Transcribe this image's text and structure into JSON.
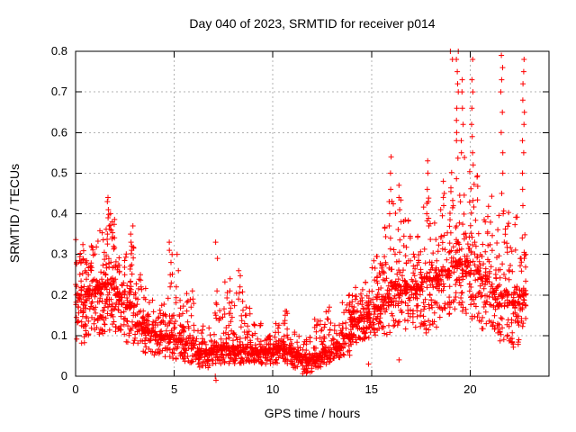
{
  "chart_data": {
    "type": "scatter",
    "title": "Day 040 of 2023, SRMTID for receiver p014",
    "xlabel": "GPS time / hours",
    "ylabel": "SRMTID / TECUs",
    "xlim": [
      0,
      24
    ],
    "ylim": [
      0,
      0.8
    ],
    "xticks": {
      "values": [
        0,
        5,
        10,
        15,
        20
      ],
      "labels": [
        "0",
        "5",
        "10",
        "15",
        "20"
      ]
    },
    "yticks": {
      "values": [
        0,
        0.1,
        0.2,
        0.3,
        0.4,
        0.5,
        0.6,
        0.7,
        0.8
      ],
      "labels": [
        "0",
        "0.1",
        "0.2",
        "0.3",
        "0.4",
        "0.5",
        "0.6",
        "0.7",
        "0.8"
      ]
    },
    "grid": {
      "show": true,
      "color": "#b3b3b3",
      "style": "dotted"
    },
    "legend": "none",
    "border_color": "#000000",
    "background": "#ffffff",
    "marker": {
      "shape": "plus",
      "size": 7,
      "color": "#ff0000"
    },
    "seed": 20230040,
    "bands_note": "dense scatter envelope per time bin: [t0_hours, t1_hours, n_points, y_min, y_mode, y_max] in TECUs",
    "bands": [
      [
        0,
        0.5,
        70,
        0.08,
        0.2,
        0.34
      ],
      [
        0.5,
        1,
        72,
        0.1,
        0.21,
        0.33
      ],
      [
        1,
        1.5,
        75,
        0.1,
        0.22,
        0.37
      ],
      [
        1.5,
        2,
        75,
        0.11,
        0.23,
        0.4
      ],
      [
        2,
        2.5,
        70,
        0.1,
        0.2,
        0.31
      ],
      [
        2.5,
        3,
        65,
        0.08,
        0.17,
        0.34
      ],
      [
        3,
        3.5,
        60,
        0.06,
        0.13,
        0.24
      ],
      [
        3.5,
        4,
        58,
        0.05,
        0.11,
        0.22
      ],
      [
        4,
        4.5,
        55,
        0.05,
        0.1,
        0.18
      ],
      [
        4.5,
        5,
        58,
        0.04,
        0.1,
        0.3
      ],
      [
        5,
        5.5,
        55,
        0.04,
        0.09,
        0.2
      ],
      [
        5.5,
        6,
        55,
        0.03,
        0.08,
        0.21
      ],
      [
        6,
        6.5,
        55,
        0.02,
        0.06,
        0.13
      ],
      [
        6.5,
        7,
        55,
        0.02,
        0.06,
        0.12
      ],
      [
        7,
        7.5,
        58,
        0.03,
        0.07,
        0.2
      ],
      [
        7.5,
        8,
        58,
        0.03,
        0.07,
        0.24
      ],
      [
        8,
        8.5,
        58,
        0.03,
        0.07,
        0.25
      ],
      [
        8.5,
        9,
        58,
        0.03,
        0.07,
        0.18
      ],
      [
        9,
        9.5,
        58,
        0.03,
        0.06,
        0.13
      ],
      [
        9.5,
        10,
        58,
        0.03,
        0.06,
        0.12
      ],
      [
        10,
        10.5,
        58,
        0.03,
        0.07,
        0.13
      ],
      [
        10.5,
        11,
        58,
        0.03,
        0.07,
        0.16
      ],
      [
        11,
        11.5,
        58,
        0.02,
        0.05,
        0.11
      ],
      [
        11.5,
        12,
        58,
        0.005,
        0.04,
        0.1
      ],
      [
        12,
        12.5,
        58,
        0.02,
        0.05,
        0.14
      ],
      [
        12.5,
        13,
        58,
        0.03,
        0.06,
        0.17
      ],
      [
        13,
        13.5,
        55,
        0.04,
        0.07,
        0.13
      ],
      [
        13.5,
        14,
        60,
        0.05,
        0.1,
        0.2
      ],
      [
        14,
        14.5,
        65,
        0.08,
        0.14,
        0.22
      ],
      [
        14.5,
        15,
        65,
        0.09,
        0.15,
        0.25
      ],
      [
        15,
        15.5,
        65,
        0.1,
        0.17,
        0.3
      ],
      [
        15.5,
        16,
        65,
        0.1,
        0.19,
        0.42
      ],
      [
        16,
        16.5,
        65,
        0.12,
        0.22,
        0.45
      ],
      [
        16.5,
        17,
        60,
        0.1,
        0.22,
        0.44
      ],
      [
        17,
        17.5,
        60,
        0.12,
        0.22,
        0.35
      ],
      [
        17.5,
        18,
        60,
        0.1,
        0.24,
        0.45
      ],
      [
        18,
        18.5,
        60,
        0.12,
        0.24,
        0.42
      ],
      [
        18.5,
        19,
        60,
        0.15,
        0.26,
        0.5
      ],
      [
        19,
        19.5,
        62,
        0.15,
        0.28,
        0.55
      ],
      [
        19.5,
        20,
        62,
        0.15,
        0.28,
        0.55
      ],
      [
        20,
        20.5,
        62,
        0.12,
        0.26,
        0.5
      ],
      [
        20.5,
        21,
        60,
        0.1,
        0.24,
        0.45
      ],
      [
        21,
        21.5,
        60,
        0.1,
        0.22,
        0.48
      ],
      [
        21.5,
        22,
        60,
        0.08,
        0.2,
        0.42
      ],
      [
        22,
        22.5,
        58,
        0.06,
        0.18,
        0.4
      ],
      [
        22.5,
        22.85,
        48,
        0.1,
        0.2,
        0.35
      ]
    ],
    "spikes_note": "tall vertical marker columns: [t_hours, [y values in TECUs]]",
    "spikes": [
      [
        1.65,
        [
          0.35,
          0.37,
          0.39,
          0.41,
          0.43,
          0.44
        ]
      ],
      [
        1.8,
        [
          0.36,
          0.38,
          0.4
        ]
      ],
      [
        2.85,
        [
          0.31,
          0.33,
          0.35,
          0.37
        ]
      ],
      [
        3.3,
        [
          0.22,
          0.25
        ]
      ],
      [
        4.8,
        [
          0.22,
          0.25,
          0.28,
          0.31,
          0.33
        ]
      ],
      [
        5.15,
        [
          0.22,
          0.26,
          0.3
        ]
      ],
      [
        5.9,
        [
          0.17,
          0.19,
          0.21
        ]
      ],
      [
        7.15,
        [
          0.15,
          0.18,
          0.21,
          0.29,
          0.33
        ]
      ],
      [
        7.85,
        [
          0.18,
          0.21,
          0.24
        ]
      ],
      [
        8.3,
        [
          0.19,
          0.22,
          0.26
        ]
      ],
      [
        8.6,
        [
          0.15,
          0.17
        ]
      ],
      [
        10.65,
        [
          0.13,
          0.15,
          0.16
        ]
      ],
      [
        12.1,
        [
          0.12,
          0.14
        ]
      ],
      [
        12.85,
        [
          0.14,
          0.16,
          0.17
        ]
      ],
      [
        13.9,
        [
          0.16,
          0.18,
          0.2
        ]
      ],
      [
        15.95,
        [
          0.34,
          0.37,
          0.4,
          0.43,
          0.46,
          0.5,
          0.54
        ]
      ],
      [
        16.45,
        [
          0.38,
          0.41,
          0.44,
          0.47
        ]
      ],
      [
        17.85,
        [
          0.37,
          0.4,
          0.43,
          0.46,
          0.5,
          0.53
        ]
      ],
      [
        18.65,
        [
          0.42,
          0.45,
          0.48
        ]
      ],
      [
        19.05,
        [
          0.78,
          0.8
        ]
      ],
      [
        19.35,
        [
          0.58,
          0.6,
          0.63,
          0.66,
          0.7,
          0.72,
          0.75,
          0.78,
          0.8
        ]
      ],
      [
        19.6,
        [
          0.55,
          0.58,
          0.62,
          0.66,
          0.7,
          0.73
        ]
      ],
      [
        20.1,
        [
          0.52,
          0.55,
          0.59,
          0.62,
          0.66,
          0.7,
          0.73,
          0.78
        ]
      ],
      [
        21.6,
        [
          0.45,
          0.5,
          0.55,
          0.6,
          0.65,
          0.7,
          0.73,
          0.76,
          0.79
        ]
      ],
      [
        22.7,
        [
          0.42,
          0.46,
          0.5,
          0.55,
          0.58,
          0.62,
          0.65,
          0.68,
          0.72,
          0.75,
          0.78
        ]
      ]
    ],
    "outliers": [
      [
        7.08,
        0.0
      ],
      [
        7.12,
        -0.01
      ],
      [
        14.85,
        0.03
      ],
      [
        16.4,
        0.04
      ]
    ]
  }
}
